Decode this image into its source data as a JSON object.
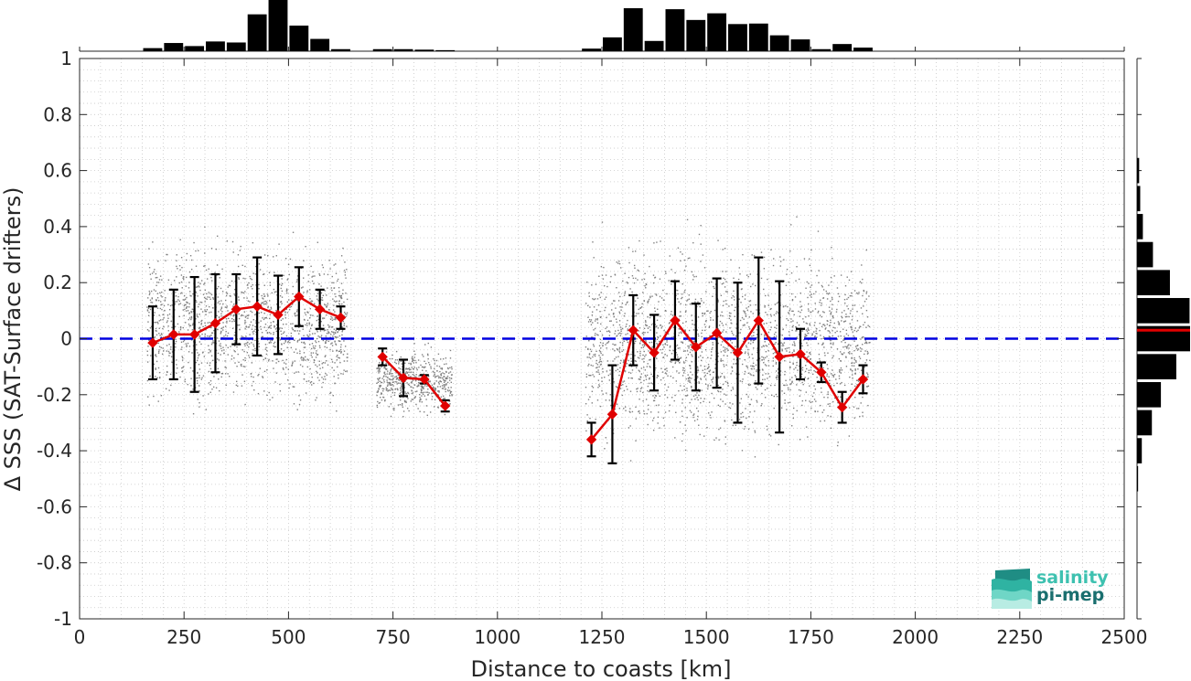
{
  "chart_data": {
    "type": "line",
    "title": "",
    "xlabel": "Distance to coasts [km]",
    "ylabel": "Δ SSS (SAT-Surface drifters)",
    "xlim": [
      0,
      2500
    ],
    "ylim": [
      -1,
      1
    ],
    "xticks": [
      0,
      250,
      500,
      750,
      1000,
      1250,
      1500,
      1750,
      2000,
      2250,
      2500
    ],
    "yticks": [
      -1,
      -0.8,
      -0.6,
      -0.4,
      -0.2,
      0,
      0.2,
      0.4,
      0.6,
      0.8,
      1
    ],
    "ytick_labels": [
      "-1",
      "-0.8",
      "-0.6",
      "-0.4",
      "-0.2",
      "0",
      "0.2",
      "0.4",
      "0.6",
      "0.8",
      "1"
    ],
    "grid": true,
    "series": [
      {
        "type": "line-errorbar",
        "color": "#e00000",
        "segments": [
          {
            "x": [
              175,
              225,
              275,
              325,
              375,
              425,
              475,
              525,
              575,
              625
            ],
            "y": [
              -0.015,
              0.015,
              0.015,
              0.055,
              0.105,
              0.115,
              0.085,
              0.15,
              0.105,
              0.075
            ],
            "err": [
              0.13,
              0.16,
              0.205,
              0.175,
              0.125,
              0.175,
              0.14,
              0.105,
              0.07,
              0.04
            ]
          },
          {
            "x": [
              725,
              775,
              825,
              875
            ],
            "y": [
              -0.065,
              -0.14,
              -0.145,
              -0.24
            ],
            "err": [
              0.03,
              0.065,
              0.015,
              0.02
            ]
          },
          {
            "x": [
              1225,
              1275,
              1325,
              1375,
              1425,
              1475,
              1525,
              1575,
              1625,
              1675,
              1725,
              1775,
              1825,
              1875
            ],
            "y": [
              -0.36,
              -0.27,
              0.03,
              -0.05,
              0.065,
              -0.03,
              0.02,
              -0.05,
              0.065,
              -0.065,
              -0.055,
              -0.12,
              -0.245,
              -0.145
            ],
            "err": [
              0.06,
              0.175,
              0.125,
              0.135,
              0.14,
              0.155,
              0.195,
              0.25,
              0.225,
              0.27,
              0.09,
              0.035,
              0.055,
              0.05
            ]
          }
        ]
      },
      {
        "type": "reference-line",
        "y": 0,
        "color": "#0000e0",
        "style": "dashed"
      }
    ],
    "scatter_clusters": [
      {
        "x_range": [
          160,
          640
        ],
        "y_center": 0.05,
        "y_spread": 0.2
      },
      {
        "x_range": [
          710,
          890
        ],
        "y_center": -0.15,
        "y_spread": 0.08
      },
      {
        "x_range": [
          1210,
          1890
        ],
        "y_center": -0.02,
        "y_spread": 0.25
      }
    ],
    "top_histogram": {
      "bin_centers": [
        175,
        225,
        275,
        325,
        375,
        425,
        475,
        525,
        575,
        625,
        725,
        775,
        825,
        875,
        1225,
        1275,
        1325,
        1375,
        1425,
        1475,
        1525,
        1575,
        1625,
        1675,
        1725,
        1775,
        1825,
        1875
      ],
      "counts": [
        0.06,
        0.16,
        0.1,
        0.19,
        0.17,
        0.72,
        1.0,
        0.5,
        0.24,
        0.04,
        0.04,
        0.04,
        0.03,
        0.02,
        0.05,
        0.27,
        0.84,
        0.2,
        0.82,
        0.61,
        0.74,
        0.53,
        0.54,
        0.31,
        0.23,
        0.04,
        0.14,
        0.07
      ]
    },
    "right_histogram": {
      "bin_centers": [
        -0.5,
        -0.4,
        -0.3,
        -0.2,
        -0.1,
        0.0,
        0.1,
        0.2,
        0.3,
        0.4,
        0.5,
        0.6
      ],
      "counts": [
        0.02,
        0.09,
        0.28,
        0.45,
        0.74,
        1.0,
        0.99,
        0.62,
        0.3,
        0.11,
        0.06,
        0.04
      ],
      "median_line": {
        "y": 0.03,
        "color": "#e00000"
      }
    },
    "colors": {
      "line": "#e00000",
      "errorbar": "#000000",
      "zero_line": "#0000e0",
      "scatter": "#808080",
      "hist": "#000000",
      "grid": "#c8c8c8"
    }
  },
  "logo": {
    "line1": "salinity",
    "line2": "pi-mep",
    "color_dark": "#1a6f6f",
    "color_light": "#3ec1b0"
  }
}
